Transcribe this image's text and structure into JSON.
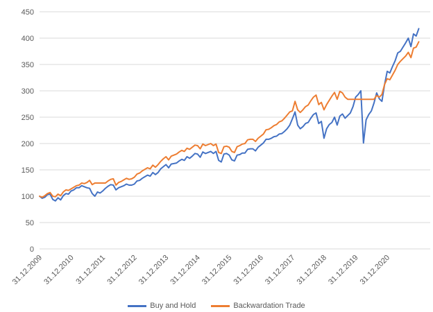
{
  "chart_data": {
    "type": "line",
    "title": "",
    "xlabel": "",
    "ylabel": "",
    "grid": true,
    "legend_position": "bottom-center",
    "ylim": [
      0,
      450
    ],
    "y_ticks": [
      0,
      50,
      100,
      150,
      200,
      250,
      300,
      350,
      400,
      450
    ],
    "x_tick_labels": [
      "31.12.2009",
      "31.12.2010",
      "31.12.2011",
      "31.12.2012",
      "31.12.2013",
      "31.12.2014",
      "31.12.2015",
      "31.12.2016",
      "31.12.2017",
      "31.12.2018",
      "31.12.2019",
      "31.12.2020"
    ],
    "x_unit": "months since 31.12.2009, one point per month, data ends 31.12.2021",
    "x_total_months": 144,
    "series": [
      {
        "name": "Buy and Hold",
        "color": "#4472C4",
        "values": [
          100,
          96,
          98,
          103,
          104,
          94,
          91,
          97,
          93,
          101,
          105,
          104,
          110,
          112,
          116,
          116,
          120,
          118,
          116,
          115,
          105,
          100,
          108,
          106,
          110,
          115,
          119,
          122,
          121,
          112,
          116,
          118,
          120,
          123,
          121,
          121,
          123,
          129,
          130,
          134,
          137,
          140,
          138,
          145,
          141,
          145,
          152,
          156,
          160,
          154,
          161,
          162,
          163,
          167,
          170,
          168,
          175,
          172,
          176,
          181,
          180,
          174,
          184,
          181,
          183,
          185,
          181,
          185,
          168,
          165,
          180,
          181,
          178,
          169,
          167,
          178,
          179,
          182,
          182,
          189,
          190,
          190,
          186,
          193,
          197,
          201,
          208,
          208,
          210,
          213,
          214,
          218,
          219,
          223,
          228,
          235,
          247,
          260,
          235,
          228,
          232,
          238,
          240,
          248,
          255,
          258,
          238,
          242,
          210,
          228,
          236,
          240,
          250,
          235,
          252,
          256,
          248,
          253,
          258,
          270,
          288,
          293,
          300,
          201,
          245,
          255,
          262,
          277,
          296,
          285,
          280,
          312,
          337,
          334,
          346,
          357,
          372,
          375,
          383,
          391,
          400,
          384,
          408,
          404,
          418
        ]
      },
      {
        "name": "Backwardation Trade",
        "color": "#ED7D31",
        "values": [
          100,
          98,
          101,
          105,
          107,
          100,
          99,
          104,
          101,
          108,
          112,
          111,
          114,
          117,
          120,
          121,
          125,
          124,
          126,
          130,
          122,
          125,
          125,
          125,
          125,
          125,
          129,
          132,
          133,
          121,
          126,
          128,
          131,
          134,
          132,
          133,
          136,
          142,
          144,
          148,
          151,
          154,
          152,
          159,
          155,
          160,
          166,
          171,
          175,
          169,
          176,
          178,
          180,
          184,
          187,
          185,
          191,
          189,
          193,
          197,
          196,
          190,
          199,
          196,
          198,
          200,
          196,
          199,
          183,
          181,
          194,
          195,
          193,
          185,
          183,
          194,
          196,
          199,
          200,
          207,
          208,
          208,
          204,
          210,
          214,
          218,
          226,
          227,
          230,
          234,
          236,
          241,
          243,
          248,
          254,
          260,
          262,
          280,
          264,
          259,
          264,
          270,
          273,
          281,
          288,
          292,
          274,
          278,
          264,
          274,
          282,
          290,
          297,
          284,
          299,
          296,
          288,
          284,
          284,
          284,
          284,
          284,
          284,
          284,
          284,
          284,
          284,
          284,
          291,
          288,
          293,
          312,
          323,
          321,
          330,
          339,
          350,
          356,
          361,
          366,
          373,
          363,
          381,
          383,
          393
        ]
      }
    ]
  },
  "colors": {
    "gridline": "#D9D9D9",
    "axis_text": "#595959",
    "background": "#FFFFFF",
    "series_blue": "#4472C4",
    "series_orange": "#ED7D31"
  },
  "legend": {
    "items": [
      {
        "label": "Buy and Hold"
      },
      {
        "label": "Backwardation Trade"
      }
    ]
  }
}
